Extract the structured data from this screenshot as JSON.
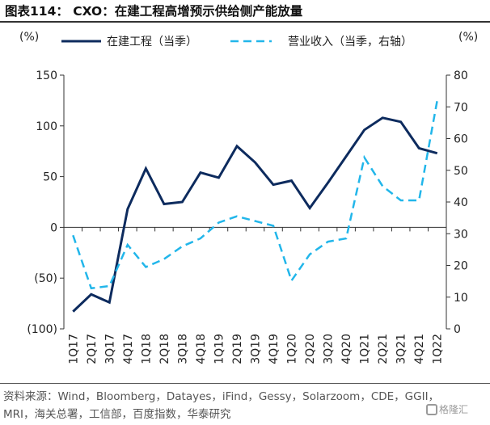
{
  "title": "图表114： CXO：在建工程高增预示供给侧产能放量",
  "units": {
    "left": "(%)",
    "right": "(%)"
  },
  "source": "资料来源：Wind，Bloomberg，Datayes，iFind，Gessy，Solarzoom，CDE，GGII，MRI，海关总署，工信部，百度指数，华泰研究",
  "watermark": "格隆汇",
  "chart_data": {
    "type": "line",
    "categories": [
      "1Q17",
      "2Q17",
      "3Q17",
      "4Q17",
      "1Q18",
      "2Q18",
      "3Q18",
      "4Q18",
      "1Q19",
      "2Q19",
      "3Q19",
      "4Q19",
      "1Q20",
      "2Q20",
      "3Q20",
      "4Q20",
      "1Q21",
      "2Q21",
      "3Q21",
      "4Q21",
      "1Q22"
    ],
    "y_left": {
      "min": -100,
      "max": 150,
      "ticks": [
        {
          "v": -100,
          "label": "(100)"
        },
        {
          "v": -50,
          "label": "(50)"
        },
        {
          "v": 0,
          "label": "0"
        },
        {
          "v": 50,
          "label": "50"
        },
        {
          "v": 100,
          "label": "100"
        },
        {
          "v": 150,
          "label": "150"
        }
      ]
    },
    "y_right": {
      "min": 0,
      "max": 80,
      "ticks": [
        {
          "v": 0,
          "label": "0"
        },
        {
          "v": 10,
          "label": "10"
        },
        {
          "v": 20,
          "label": "20"
        },
        {
          "v": 30,
          "label": "30"
        },
        {
          "v": 40,
          "label": "40"
        },
        {
          "v": 50,
          "label": "50"
        },
        {
          "v": 60,
          "label": "60"
        },
        {
          "v": 70,
          "label": "70"
        },
        {
          "v": 80,
          "label": "80"
        }
      ]
    },
    "series": [
      {
        "name": "在建工程（当季）",
        "axis": "left",
        "color": "#0d2b5e",
        "style": "solid",
        "values": [
          -83,
          -66,
          -74,
          18,
          58,
          23,
          25,
          54,
          49,
          80,
          64,
          42,
          46,
          19,
          44,
          70,
          96,
          108,
          104,
          78,
          73
        ]
      },
      {
        "name": "营业收入（当季，右轴）",
        "axis": "right",
        "color": "#22b6ea",
        "style": "dashed",
        "values": [
          29.5,
          12.8,
          13.5,
          26.5,
          19.5,
          22,
          26,
          28.5,
          33.5,
          35.5,
          34,
          32.5,
          15.2,
          23.5,
          27.5,
          28.5,
          54,
          45,
          40.5,
          40.5,
          72
        ]
      }
    ],
    "legend": "top"
  }
}
